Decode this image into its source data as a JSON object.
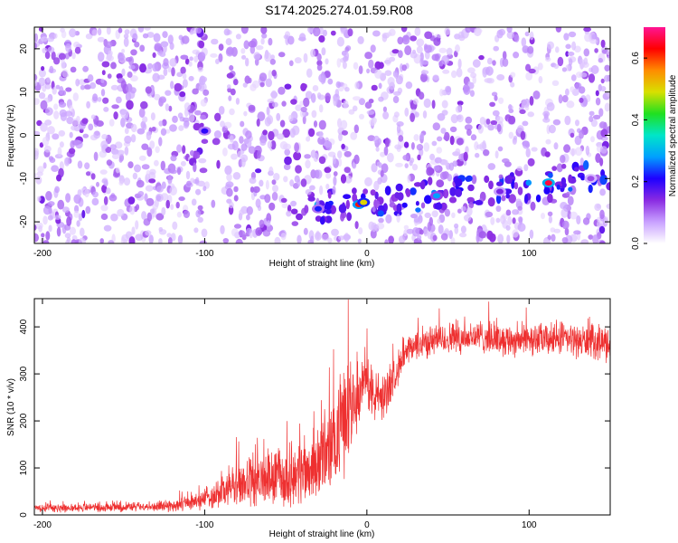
{
  "title": "S174.2025.274.01.59.R08",
  "chart_data": [
    {
      "type": "heatmap",
      "title": "S174.2025.274.01.59.R08",
      "xlabel": "Height of straight line (km)",
      "ylabel": "Frequency (Hz)",
      "xlim": [
        -205,
        150
      ],
      "ylim": [
        -25,
        25
      ],
      "xticks": [
        -200,
        -100,
        0,
        100
      ],
      "xtick_labels": [
        "-200",
        "-100",
        "0",
        "100"
      ],
      "yticks": [
        -20,
        -10,
        0,
        10,
        20
      ],
      "ytick_labels": [
        "-20",
        "-10",
        "0",
        "10",
        "20"
      ],
      "colorbar": {
        "label": "Normalized spectral amplitude",
        "range": [
          0,
          0.7
        ],
        "ticks": [
          0,
          0.2,
          0.4,
          0.6
        ],
        "tick_labels": [
          "0.0",
          "0.2",
          "0.4",
          "0.6"
        ],
        "colors": [
          "#ffffff",
          "#c8a0ff",
          "#8a2be2",
          "#1e00ff",
          "#00a0ff",
          "#00e6c8",
          "#20e020",
          "#d8e000",
          "#ff8c00",
          "#ff0000",
          "#ff1493"
        ]
      },
      "background_noise_level": 0.12,
      "ridge": {
        "description_points": [
          {
            "x": -40,
            "y": -17
          },
          {
            "x": 0,
            "y": -15.5
          },
          {
            "x": 40,
            "y": -14
          },
          {
            "x": 80,
            "y": -12
          },
          {
            "x": 115,
            "y": -11
          },
          {
            "x": 150,
            "y": -9
          }
        ]
      },
      "hot_spots": [
        {
          "x": -5,
          "y": -16,
          "value": 0.62
        },
        {
          "x": -2,
          "y": -15.5,
          "value": 0.5
        },
        {
          "x": 112,
          "y": -11,
          "value": 0.66
        },
        {
          "x": 43,
          "y": -14,
          "value": 0.28
        },
        {
          "x": -30,
          "y": -17,
          "value": 0.22
        },
        {
          "x": -100,
          "y": 1,
          "value": 0.2
        },
        {
          "x": 82,
          "y": -13,
          "value": 0.15
        },
        {
          "x": 138,
          "y": -10,
          "value": 0.12
        }
      ],
      "gaps_x": [
        [
          -100,
          -88
        ],
        [
          -5,
          2
        ],
        [
          102,
          110
        ]
      ],
      "grid": false
    },
    {
      "type": "line",
      "xlabel": "Height of straight line (km)",
      "ylabel": "SNR (10 * v/v)",
      "xlim": [
        -205,
        150
      ],
      "ylim": [
        0,
        460
      ],
      "xticks": [
        -200,
        -100,
        0,
        100
      ],
      "xtick_labels": [
        "-200",
        "-100",
        "0",
        "100"
      ],
      "yticks": [
        0,
        100,
        200,
        300,
        400
      ],
      "ytick_labels": [
        "0",
        "100",
        "200",
        "300",
        "400"
      ],
      "color": "#ee3030",
      "grid": false,
      "series": [
        {
          "x": [
            -205,
            -190,
            -175,
            -160,
            -145,
            -130,
            -120,
            -110,
            -100,
            -90,
            -80,
            -70,
            -60,
            -50,
            -40,
            -30,
            -20,
            -15,
            -10,
            -5,
            0,
            5,
            10,
            15,
            20,
            25,
            30,
            40,
            50,
            60,
            70,
            80,
            90,
            100,
            110,
            120,
            130,
            140,
            150
          ],
          "y_mean": [
            15,
            15,
            16,
            16,
            17,
            18,
            20,
            25,
            35,
            50,
            65,
            70,
            75,
            80,
            90,
            110,
            150,
            200,
            250,
            260,
            280,
            250,
            250,
            280,
            320,
            345,
            360,
            370,
            375,
            378,
            380,
            375,
            372,
            375,
            372,
            375,
            370,
            368,
            365
          ],
          "y_noise": [
            8,
            8,
            8,
            9,
            9,
            10,
            12,
            15,
            20,
            35,
            45,
            50,
            55,
            60,
            65,
            70,
            90,
            110,
            100,
            60,
            60,
            50,
            45,
            40,
            30,
            28,
            30,
            30,
            32,
            32,
            32,
            32,
            32,
            32,
            32,
            32,
            32,
            32,
            35
          ]
        }
      ]
    }
  ]
}
